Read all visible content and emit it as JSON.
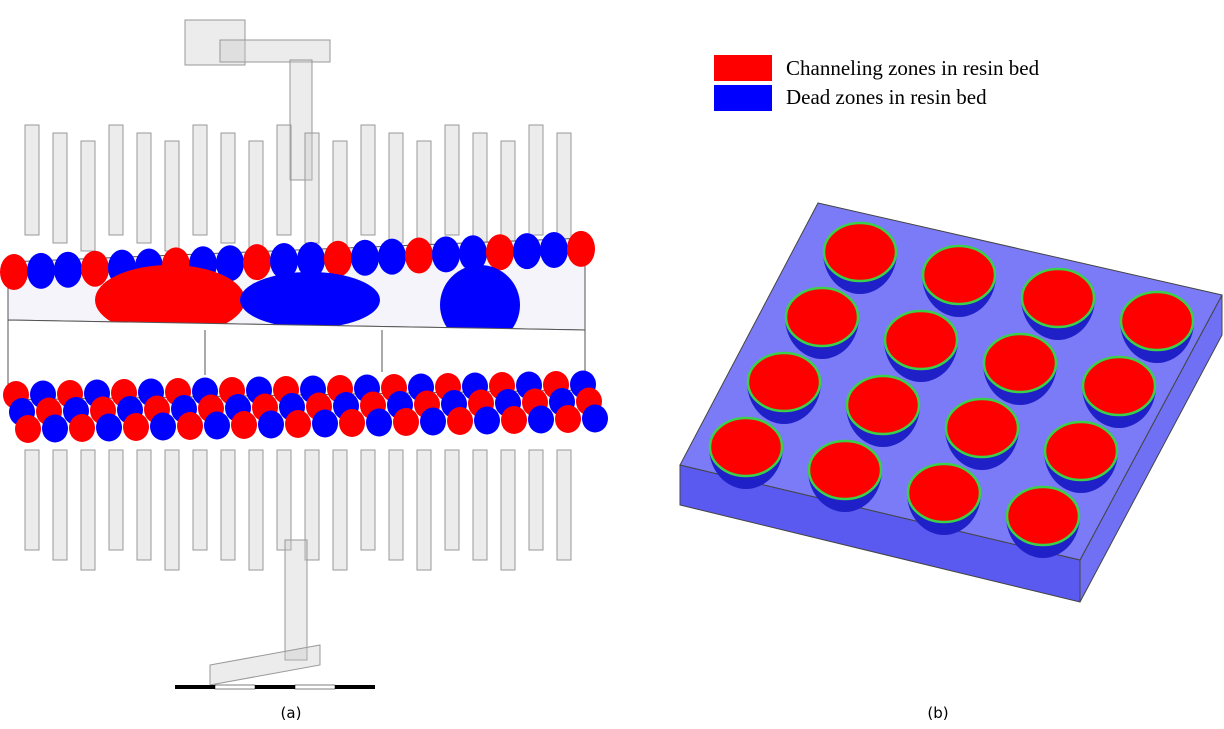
{
  "legend": {
    "items": [
      {
        "label": "Channeling zones in resin bed",
        "color": "#ff0000"
      },
      {
        "label": "Dead zones in resin bed",
        "color": "#0000ff"
      }
    ]
  },
  "panels": [
    {
      "label": "(a)"
    },
    {
      "label": "(b)"
    }
  ]
}
